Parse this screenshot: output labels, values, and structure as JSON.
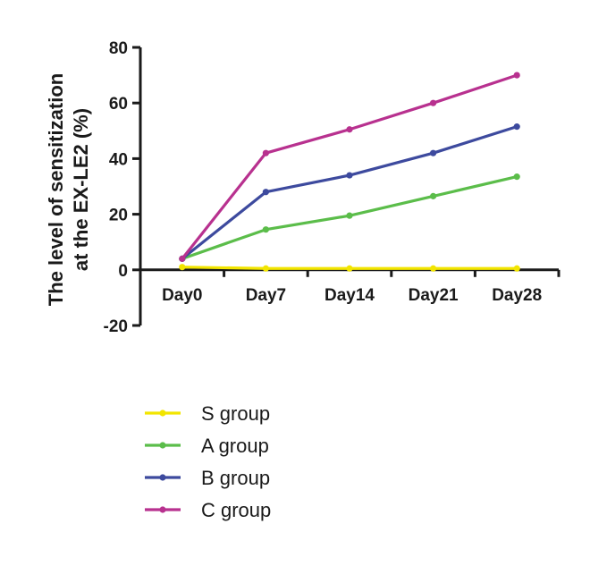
{
  "chart_data": {
    "type": "line",
    "categories": [
      "Day0",
      "Day7",
      "Day14",
      "Day21",
      "Day28"
    ],
    "ylabel_lines": [
      "The level of sensitization",
      "at the EX-LE2 (%)"
    ],
    "xlabel": "",
    "title": "",
    "ylim": [
      -20,
      80
    ],
    "yticks": [
      -20,
      0,
      20,
      40,
      60,
      80
    ],
    "grid": false,
    "legend_position": "bottom",
    "series": [
      {
        "name": "S group",
        "color": "#f2e500",
        "values": [
          1,
          0.5,
          0.5,
          0.5,
          0.5
        ]
      },
      {
        "name": "A group",
        "color": "#5bbd4a",
        "values": [
          4,
          14.5,
          19.5,
          26.5,
          33.5
        ]
      },
      {
        "name": "B group",
        "color": "#3d4a9e",
        "values": [
          4,
          28,
          34,
          42,
          51.5
        ]
      },
      {
        "name": "C group",
        "color": "#b8318f",
        "values": [
          4,
          42,
          50.5,
          60,
          70
        ]
      }
    ]
  }
}
